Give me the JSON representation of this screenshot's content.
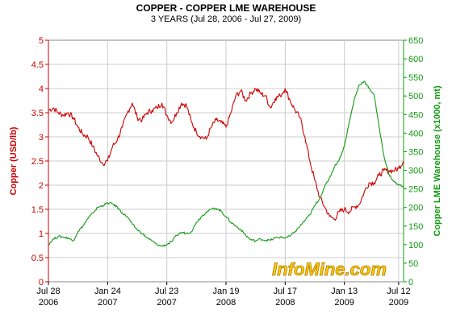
{
  "chart_data": {
    "type": "line",
    "title": "COPPER - COPPER LME WAREHOUSE",
    "subtitle": "3 YEARS (Jul 28, 2006 - Jul 27, 2009)",
    "watermark": "InfoMine.com",
    "grid": true,
    "x_ticks": [
      {
        "m": 0,
        "line1": "Jul 28",
        "line2": "2006"
      },
      {
        "m": 6,
        "line1": "Jan 24",
        "line2": "2007"
      },
      {
        "m": 12,
        "line1": "Jul 23",
        "line2": "2007"
      },
      {
        "m": 18,
        "line1": "Jan 19",
        "line2": "2008"
      },
      {
        "m": 24,
        "line1": "Jul 17",
        "line2": "2008"
      },
      {
        "m": 30,
        "line1": "Jan 13",
        "line2": "2009"
      },
      {
        "m": 35.5,
        "line1": "Jul 12",
        "line2": "2009"
      }
    ],
    "x_range": [
      0,
      36
    ],
    "y_left": {
      "label": "Copper (USD/lb)",
      "range": [
        0,
        5
      ],
      "ticks": [
        "0",
        "0.5",
        "1",
        "1.5",
        "2",
        "2.5",
        "3",
        "3.5",
        "4",
        "4.5",
        "5"
      ],
      "color": "#cc0000"
    },
    "y_right": {
      "label": "Copper LME Warehouse (x1000, mt)",
      "range": [
        0,
        650
      ],
      "ticks": [
        "0",
        "50",
        "100",
        "150",
        "200",
        "250",
        "300",
        "350",
        "400",
        "450",
        "500",
        "550",
        "600",
        "650"
      ],
      "color": "#119911"
    },
    "series": [
      {
        "axis": "left",
        "color": "#cc0000",
        "points": [
          [
            0,
            3.55
          ],
          [
            0.5,
            3.6
          ],
          [
            1,
            3.5
          ],
          [
            1.5,
            3.45
          ],
          [
            2,
            3.5
          ],
          [
            2.5,
            3.4
          ],
          [
            3,
            3.2
          ],
          [
            3.5,
            3.05
          ],
          [
            4,
            3.0
          ],
          [
            4.5,
            2.8
          ],
          [
            5,
            2.6
          ],
          [
            5.5,
            2.45
          ],
          [
            6,
            2.5
          ],
          [
            6.5,
            2.8
          ],
          [
            7,
            2.95
          ],
          [
            7.5,
            3.2
          ],
          [
            8,
            3.5
          ],
          [
            8.5,
            3.7
          ],
          [
            9,
            3.4
          ],
          [
            9.5,
            3.35
          ],
          [
            10,
            3.5
          ],
          [
            10.5,
            3.55
          ],
          [
            11,
            3.6
          ],
          [
            11.5,
            3.7
          ],
          [
            12,
            3.45
          ],
          [
            12.5,
            3.3
          ],
          [
            13,
            3.5
          ],
          [
            13.5,
            3.7
          ],
          [
            14,
            3.65
          ],
          [
            14.5,
            3.3
          ],
          [
            15,
            3.1
          ],
          [
            15.5,
            3.0
          ],
          [
            16,
            2.95
          ],
          [
            16.5,
            3.2
          ],
          [
            17,
            3.35
          ],
          [
            17.5,
            3.3
          ],
          [
            18,
            3.2
          ],
          [
            18.5,
            3.5
          ],
          [
            19,
            3.85
          ],
          [
            19.5,
            3.95
          ],
          [
            20,
            3.75
          ],
          [
            20.5,
            3.9
          ],
          [
            21,
            4.0
          ],
          [
            21.5,
            3.9
          ],
          [
            22,
            3.85
          ],
          [
            22.5,
            3.6
          ],
          [
            23,
            3.8
          ],
          [
            23.5,
            3.85
          ],
          [
            24,
            4.0
          ],
          [
            24.5,
            3.75
          ],
          [
            25,
            3.55
          ],
          [
            25.5,
            3.4
          ],
          [
            26,
            3.0
          ],
          [
            26.5,
            2.5
          ],
          [
            27,
            2.1
          ],
          [
            27.5,
            1.75
          ],
          [
            28,
            1.55
          ],
          [
            28.5,
            1.35
          ],
          [
            29,
            1.3
          ],
          [
            29.5,
            1.45
          ],
          [
            30,
            1.5
          ],
          [
            30.5,
            1.45
          ],
          [
            31,
            1.55
          ],
          [
            31.5,
            1.6
          ],
          [
            32,
            1.85
          ],
          [
            32.5,
            2.05
          ],
          [
            33,
            2.05
          ],
          [
            33.5,
            2.2
          ],
          [
            34,
            2.3
          ],
          [
            34.5,
            2.3
          ],
          [
            35,
            2.3
          ],
          [
            35.5,
            2.35
          ],
          [
            36,
            2.5
          ]
        ]
      },
      {
        "axis": "right",
        "color": "#119911",
        "points": [
          [
            0,
            100
          ],
          [
            0.5,
            115
          ],
          [
            1,
            122
          ],
          [
            1.5,
            120
          ],
          [
            2,
            118
          ],
          [
            2.5,
            110
          ],
          [
            3,
            135
          ],
          [
            3.5,
            150
          ],
          [
            4,
            170
          ],
          [
            4.5,
            185
          ],
          [
            5,
            200
          ],
          [
            5.5,
            205
          ],
          [
            6,
            212
          ],
          [
            6.5,
            210
          ],
          [
            7,
            200
          ],
          [
            7.5,
            185
          ],
          [
            8,
            175
          ],
          [
            8.5,
            155
          ],
          [
            9,
            140
          ],
          [
            9.5,
            130
          ],
          [
            10,
            118
          ],
          [
            10.5,
            110
          ],
          [
            11,
            100
          ],
          [
            11.5,
            96
          ],
          [
            12,
            100
          ],
          [
            12.5,
            108
          ],
          [
            13,
            125
          ],
          [
            13.5,
            133
          ],
          [
            14,
            130
          ],
          [
            14.5,
            135
          ],
          [
            15,
            160
          ],
          [
            15.5,
            175
          ],
          [
            16,
            188
          ],
          [
            16.5,
            195
          ],
          [
            17,
            198
          ],
          [
            17.5,
            190
          ],
          [
            18,
            175
          ],
          [
            18.5,
            160
          ],
          [
            19,
            150
          ],
          [
            19.5,
            140
          ],
          [
            20,
            125
          ],
          [
            20.5,
            113
          ],
          [
            21,
            110
          ],
          [
            21.5,
            115
          ],
          [
            22,
            112
          ],
          [
            22.5,
            112
          ],
          [
            23,
            118
          ],
          [
            23.5,
            120
          ],
          [
            24,
            118
          ],
          [
            24.5,
            123
          ],
          [
            25,
            135
          ],
          [
            25.5,
            150
          ],
          [
            26,
            165
          ],
          [
            26.5,
            180
          ],
          [
            27,
            205
          ],
          [
            27.5,
            225
          ],
          [
            28,
            255
          ],
          [
            28.5,
            280
          ],
          [
            29,
            310
          ],
          [
            29.5,
            330
          ],
          [
            30,
            365
          ],
          [
            30.5,
            430
          ],
          [
            31,
            490
          ],
          [
            31.5,
            530
          ],
          [
            32,
            540
          ],
          [
            32.5,
            520
          ],
          [
            33,
            505
          ],
          [
            33.5,
            420
          ],
          [
            34,
            340
          ],
          [
            34.5,
            290
          ],
          [
            35,
            270
          ],
          [
            35.5,
            260
          ],
          [
            36,
            258
          ]
        ]
      }
    ]
  }
}
